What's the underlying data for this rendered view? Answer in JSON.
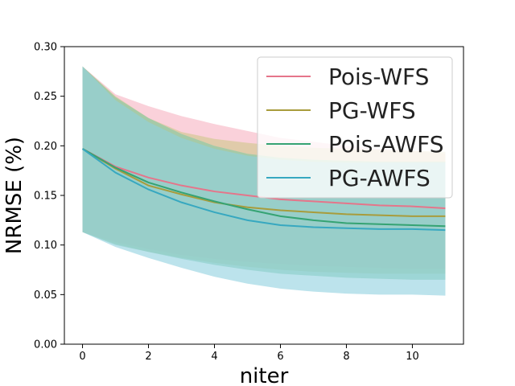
{
  "chart_data": {
    "type": "line",
    "title": "",
    "xlabel": "niter",
    "ylabel": "NRMSE (%)",
    "xlim": [
      -0.55,
      11.55
    ],
    "ylim": [
      0.0,
      0.3
    ],
    "xticks": [
      0,
      2,
      4,
      6,
      8,
      10
    ],
    "xtick_labels": [
      "0",
      "2",
      "4",
      "6",
      "8",
      "10"
    ],
    "yticks": [
      0.0,
      0.05,
      0.1,
      0.15,
      0.2,
      0.25,
      0.3
    ],
    "ytick_labels": [
      "0.00",
      "0.05",
      "0.10",
      "0.15",
      "0.20",
      "0.25",
      "0.30"
    ],
    "legend_position": "top-right",
    "grid": false,
    "x": [
      0,
      1,
      2,
      3,
      4,
      5,
      6,
      7,
      8,
      9,
      10,
      11
    ],
    "series": [
      {
        "name": "Pois-WFS",
        "color": "#e5758a",
        "fill": "#f7b3c1",
        "values": [
          0.197,
          0.179,
          0.168,
          0.16,
          0.154,
          0.15,
          0.146,
          0.144,
          0.142,
          0.14,
          0.139,
          0.137
        ],
        "upper": [
          0.28,
          0.252,
          0.24,
          0.23,
          0.222,
          0.215,
          0.208,
          0.204,
          0.2,
          0.197,
          0.195,
          0.192
        ],
        "lower": [
          0.113,
          0.103,
          0.096,
          0.09,
          0.086,
          0.083,
          0.081,
          0.079,
          0.078,
          0.077,
          0.076,
          0.076
        ]
      },
      {
        "name": "PG-WFS",
        "color": "#a89c3c",
        "fill": "#cfc78a",
        "values": [
          0.197,
          0.177,
          0.16,
          0.151,
          0.143,
          0.138,
          0.135,
          0.133,
          0.131,
          0.13,
          0.129,
          0.129
        ],
        "upper": [
          0.28,
          0.25,
          0.228,
          0.214,
          0.207,
          0.203,
          0.2,
          0.198,
          0.197,
          0.196,
          0.195,
          0.194
        ],
        "lower": [
          0.113,
          0.101,
          0.093,
          0.087,
          0.082,
          0.078,
          0.075,
          0.073,
          0.072,
          0.071,
          0.071,
          0.071
        ]
      },
      {
        "name": "Pois-AWFS",
        "color": "#35a373",
        "fill": "#7fcaa5",
        "values": [
          0.197,
          0.178,
          0.163,
          0.153,
          0.144,
          0.136,
          0.129,
          0.125,
          0.122,
          0.121,
          0.12,
          0.119
        ],
        "upper": [
          0.28,
          0.249,
          0.228,
          0.212,
          0.2,
          0.192,
          0.188,
          0.186,
          0.185,
          0.184,
          0.184,
          0.184
        ],
        "lower": [
          0.113,
          0.1,
          0.093,
          0.086,
          0.08,
          0.075,
          0.071,
          0.069,
          0.067,
          0.066,
          0.065,
          0.065
        ]
      },
      {
        "name": "PG-AWFS",
        "color": "#37a8c0",
        "fill": "#8fd0df",
        "values": [
          0.197,
          0.173,
          0.156,
          0.143,
          0.133,
          0.125,
          0.12,
          0.118,
          0.117,
          0.116,
          0.116,
          0.115
        ],
        "upper": [
          0.28,
          0.246,
          0.224,
          0.208,
          0.197,
          0.19,
          0.186,
          0.184,
          0.183,
          0.183,
          0.183,
          0.183
        ],
        "lower": [
          0.113,
          0.098,
          0.087,
          0.077,
          0.068,
          0.061,
          0.056,
          0.053,
          0.051,
          0.05,
          0.05,
          0.049
        ]
      }
    ]
  }
}
